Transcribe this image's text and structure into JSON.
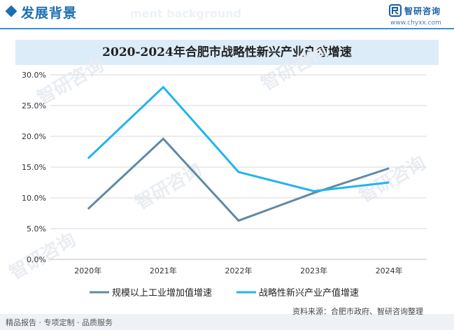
{
  "header": {
    "title": "发展背景",
    "ghost_text": "ment background",
    "logo_text": "智研咨询",
    "logo_url": "www.chyxx.com",
    "accent_color": "#1e6fb0"
  },
  "chart_data": {
    "type": "line",
    "title": "2020-2024年合肥市战略性新兴产业产值增速",
    "categories": [
      "2020年",
      "2021年",
      "2022年",
      "2023年",
      "2024年"
    ],
    "yticks": [
      "0.0%",
      "5.0%",
      "10.0%",
      "15.0%",
      "20.0%",
      "25.0%",
      "30.0%"
    ],
    "ylim": [
      0,
      30
    ],
    "grid": true,
    "legend_position": "bottom",
    "series": [
      {
        "name": "规模以上工业增加值增速",
        "color": "#5f8aa3",
        "values": [
          8.2,
          19.6,
          6.3,
          10.8,
          14.8
        ]
      },
      {
        "name": "战略性新兴产业产值增速",
        "color": "#21b4ee",
        "values": [
          16.4,
          28.0,
          14.2,
          11.1,
          12.5
        ]
      }
    ]
  },
  "watermark_text": "智研咨询",
  "footer": {
    "left": "精品报告 · 专项定制 · 品质服务",
    "source": "资料来源：合肥市政府、智研咨询整理"
  }
}
